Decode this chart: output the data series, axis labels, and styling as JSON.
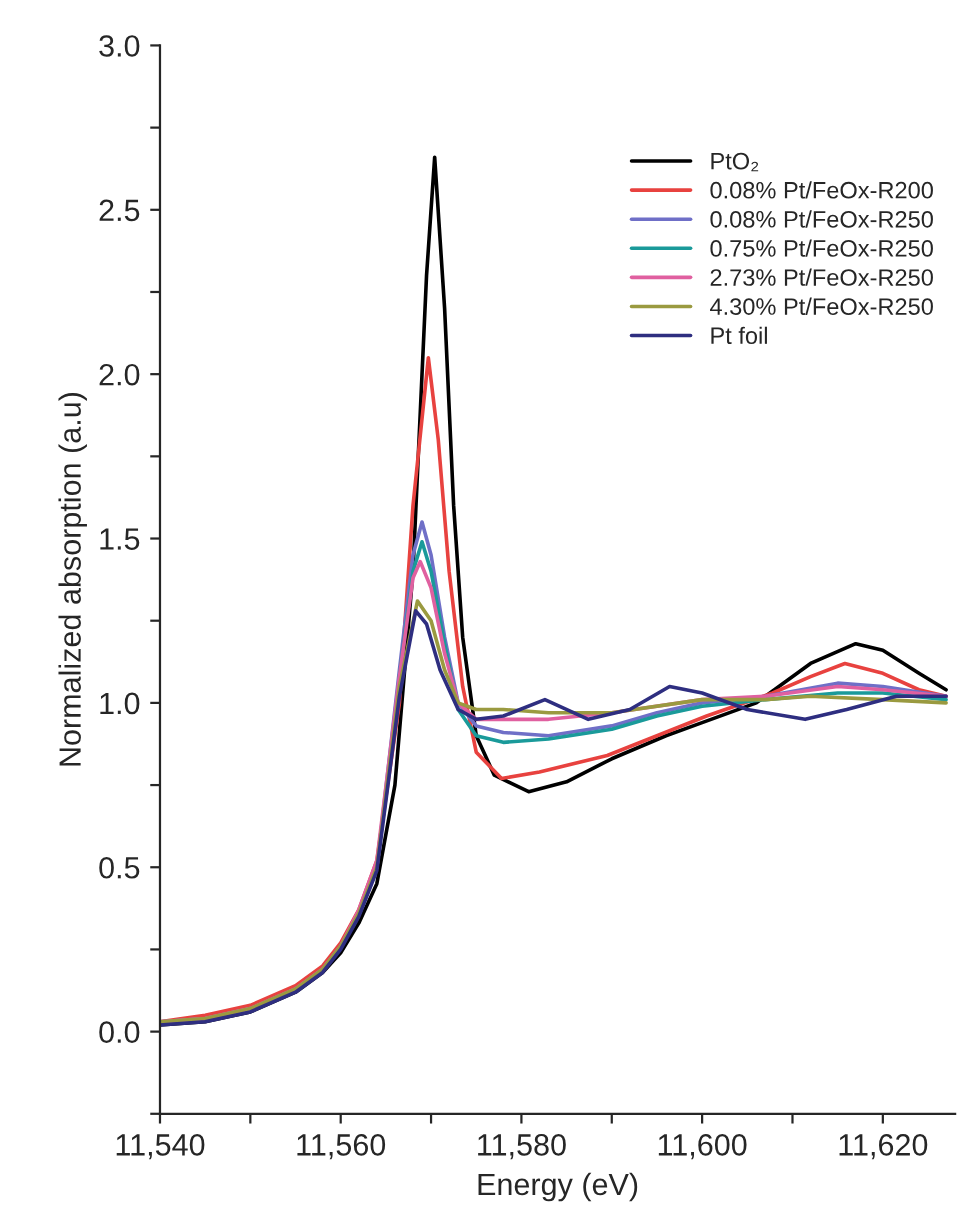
{
  "chart_data": {
    "type": "line",
    "xlabel": "Energy (eV)",
    "ylabel": "Normalized absorption (a.u)",
    "xlim": [
      11540,
      11628
    ],
    "ylim": [
      -0.25,
      3.0
    ],
    "xticks": [
      {
        "value": 11540,
        "label": "11,540"
      },
      {
        "value": 11550,
        "label": null
      },
      {
        "value": 11560,
        "label": "11,560"
      },
      {
        "value": 11570,
        "label": null
      },
      {
        "value": 11580,
        "label": "11,580"
      },
      {
        "value": 11590,
        "label": null
      },
      {
        "value": 11600,
        "label": "11,600"
      },
      {
        "value": 11610,
        "label": null
      },
      {
        "value": 11620,
        "label": "11,620"
      }
    ],
    "yticks": [
      {
        "value": -0.25,
        "label": null
      },
      {
        "value": 0,
        "label": "0.0"
      },
      {
        "value": 0.25,
        "label": null
      },
      0.5,
      {
        "value": 0.75,
        "label": null
      },
      {
        "value": 1,
        "label": "1.0"
      },
      {
        "value": 1.25,
        "label": null
      },
      1.5,
      {
        "value": 1.75,
        "label": null
      },
      {
        "value": 2,
        "label": "2.0"
      },
      {
        "value": 2.25,
        "label": null
      },
      2.5,
      {
        "value": 2.75,
        "label": null
      },
      {
        "value": 3,
        "label": "3.0"
      }
    ],
    "grid": false,
    "legend": "top right",
    "marker": "none",
    "line_style": "solid",
    "series": [
      {
        "name": "PtO₂",
        "color": "#000000",
        "x": [
          11540,
          11545,
          11550,
          11555,
          11558,
          11560,
          11562,
          11564,
          11566,
          11568,
          11569.5,
          11570.4,
          11571.5,
          11572.5,
          11573.5,
          11575,
          11577,
          11580.8,
          11585,
          11590,
          11596,
          11600,
          11606,
          11612,
          11617,
          11620,
          11624,
          11627
        ],
        "values": [
          0.02,
          0.03,
          0.06,
          0.12,
          0.18,
          0.24,
          0.33,
          0.45,
          0.75,
          1.4,
          2.3,
          2.66,
          2.2,
          1.6,
          1.2,
          0.9,
          0.78,
          0.73,
          0.76,
          0.83,
          0.9,
          0.94,
          1.0,
          1.12,
          1.18,
          1.16,
          1.09,
          1.04
        ]
      },
      {
        "name": "0.08% Pt/FeOx-R200",
        "color": "#e8423f",
        "x": [
          11540,
          11545,
          11550,
          11555,
          11558,
          11560,
          11562,
          11564,
          11566.5,
          11568,
          11569.7,
          11570.8,
          11572,
          11573.5,
          11575,
          11577.8,
          11582,
          11589.5,
          11595,
          11600.5,
          11607.8,
          11612,
          11615.8,
          11620,
          11624,
          11627
        ],
        "values": [
          0.03,
          0.05,
          0.08,
          0.14,
          0.2,
          0.27,
          0.37,
          0.52,
          1.0,
          1.6,
          2.05,
          1.8,
          1.4,
          1.05,
          0.85,
          0.77,
          0.79,
          0.84,
          0.9,
          0.96,
          1.03,
          1.08,
          1.12,
          1.09,
          1.04,
          1.02
        ]
      },
      {
        "name": "0.08% Pt/FeOx-R250",
        "color": "#6f6fc7",
        "x": [
          11540,
          11545,
          11550,
          11555,
          11558,
          11560,
          11562,
          11564,
          11566.5,
          11568,
          11569,
          11570,
          11571.5,
          11573,
          11575,
          11578,
          11583,
          11590,
          11595,
          11600,
          11607,
          11615,
          11620,
          11627
        ],
        "values": [
          0.03,
          0.04,
          0.07,
          0.13,
          0.19,
          0.26,
          0.36,
          0.5,
          1.1,
          1.45,
          1.55,
          1.45,
          1.2,
          1.0,
          0.93,
          0.91,
          0.9,
          0.93,
          0.97,
          1.0,
          1.02,
          1.06,
          1.05,
          1.02
        ]
      },
      {
        "name": "0.75% Pt/FeOx-R250",
        "color": "#1a9a9a",
        "x": [
          11566.5,
          11568,
          11569,
          11570,
          11571.5,
          11573,
          11575,
          11578,
          11583,
          11590,
          11595,
          11600,
          11607,
          11615,
          11620,
          11627
        ],
        "values": [
          1.08,
          1.4,
          1.49,
          1.4,
          1.18,
          0.98,
          0.9,
          0.88,
          0.89,
          0.92,
          0.96,
          0.99,
          1.01,
          1.03,
          1.03,
          1.01
        ]
      },
      {
        "name": "2.73% Pt/FeOx-R250",
        "color": "#e060a0",
        "x": [
          11540,
          11545,
          11550,
          11555,
          11558,
          11560,
          11562,
          11564,
          11566.5,
          11568,
          11568.8,
          11570,
          11571.5,
          11573,
          11575,
          11578,
          11583,
          11590,
          11600,
          11607,
          11615,
          11620,
          11627
        ],
        "values": [
          0.03,
          0.04,
          0.07,
          0.13,
          0.19,
          0.26,
          0.37,
          0.52,
          1.08,
          1.38,
          1.43,
          1.35,
          1.15,
          1.0,
          0.95,
          0.95,
          0.95,
          0.97,
          1.01,
          1.02,
          1.05,
          1.04,
          1.02
        ]
      },
      {
        "name": "4.30% Pt/FeOx-R250",
        "color": "#9a9a40",
        "x": [
          11540,
          11545,
          11550,
          11555,
          11558,
          11560,
          11562,
          11564,
          11566.5,
          11568.5,
          11570,
          11571.5,
          11573,
          11575,
          11578,
          11583,
          11590,
          11600,
          11607,
          11612,
          11620,
          11627
        ],
        "values": [
          0.03,
          0.04,
          0.07,
          0.13,
          0.19,
          0.26,
          0.36,
          0.5,
          1.05,
          1.31,
          1.25,
          1.1,
          1.0,
          0.98,
          0.98,
          0.97,
          0.97,
          1.01,
          1.01,
          1.02,
          1.01,
          1.0
        ]
      },
      {
        "name": "Pt foil",
        "color": "#2e2e80",
        "x": [
          11540,
          11545,
          11550,
          11555,
          11558,
          11560,
          11562,
          11564,
          11566.5,
          11568.3,
          11569.5,
          11571,
          11573,
          11575,
          11578,
          11582.6,
          11587.4,
          11592,
          11596.4,
          11600,
          11605,
          11611.4,
          11616,
          11621.5,
          11627
        ],
        "values": [
          0.02,
          0.03,
          0.06,
          0.12,
          0.18,
          0.25,
          0.35,
          0.49,
          1.02,
          1.28,
          1.24,
          1.1,
          0.98,
          0.95,
          0.96,
          1.01,
          0.95,
          0.98,
          1.05,
          1.03,
          0.98,
          0.95,
          0.98,
          1.02,
          1.02
        ]
      }
    ]
  }
}
